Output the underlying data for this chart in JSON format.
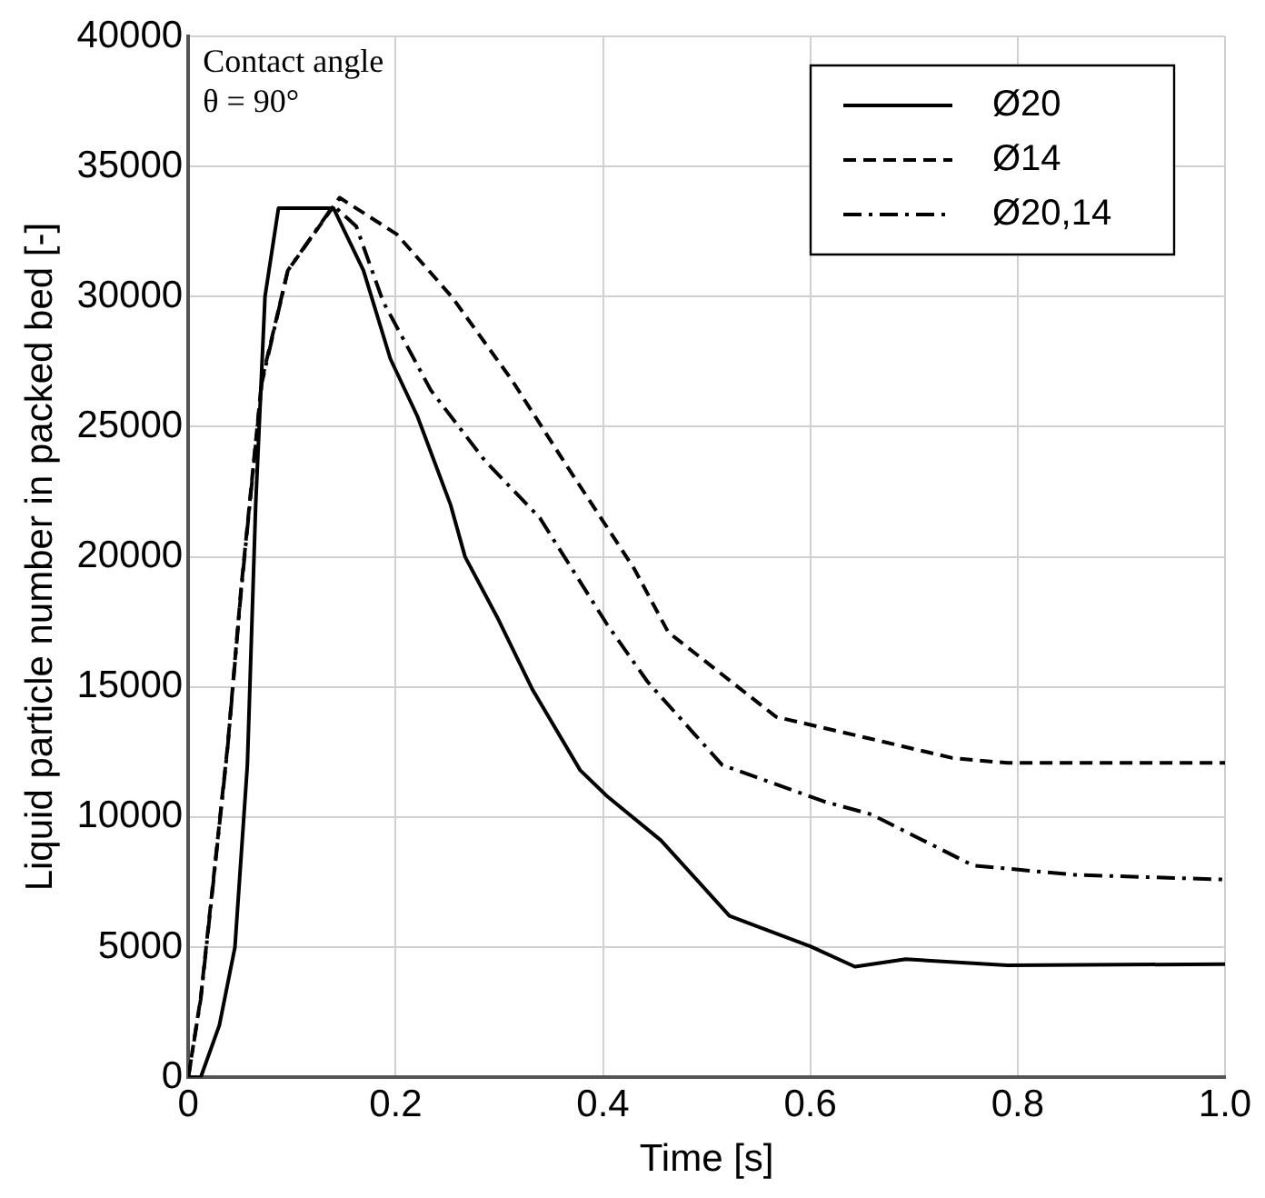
{
  "chart_data": {
    "type": "line",
    "xlabel": "Time [s]",
    "ylabel": "Liquid particle number in packed bed [-]",
    "annotations": [
      "Contact angle\nθ = 90°"
    ],
    "xlim": [
      0,
      1
    ],
    "xticks": [
      0,
      0.2,
      0.4,
      0.6,
      0.8,
      {
        "value": 1,
        "label": "1.0"
      }
    ],
    "ylim": [
      0,
      40000
    ],
    "yticks": [
      0,
      5000,
      10000,
      15000,
      20000,
      25000,
      30000,
      35000,
      40000
    ],
    "grid": true,
    "legend": "top right",
    "marker": "none",
    "series": [
      {
        "name": "Ø20",
        "color": "#000000",
        "line_style": "solid",
        "x": [
          0,
          0.012,
          0.03,
          0.045,
          0.057,
          0.065,
          0.074,
          0.087,
          0.14,
          0.169,
          0.195,
          0.221,
          0.253,
          0.267,
          0.299,
          0.332,
          0.378,
          0.404,
          0.456,
          0.522,
          0.6,
          0.643,
          0.692,
          0.79,
          1.0
        ],
        "values": [
          0,
          0,
          2000,
          5000,
          12000,
          22000,
          30000,
          33400,
          33400,
          31000,
          27600,
          25400,
          22000,
          20000,
          17600,
          14900,
          11800,
          10800,
          9100,
          6200,
          5030,
          4250,
          4540,
          4300,
          4350
        ]
      },
      {
        "name": "Ø14",
        "color": "#000000",
        "line_style": "dashed",
        "x": [
          0,
          0.012,
          0.025,
          0.038,
          0.051,
          0.071,
          0.096,
          0.146,
          0.201,
          0.254,
          0.312,
          0.365,
          0.43,
          0.463,
          0.567,
          0.659,
          0.737,
          0.79,
          1.0
        ],
        "values": [
          0,
          3060,
          7900,
          12750,
          18800,
          26800,
          31000,
          33800,
          32400,
          30000,
          26800,
          23500,
          19550,
          17100,
          13850,
          13000,
          12270,
          12080,
          12080
        ]
      },
      {
        "name": "Ø20,14",
        "color": "#000000",
        "line_style": "dashdot",
        "x": [
          0,
          0.012,
          0.025,
          0.038,
          0.051,
          0.071,
          0.096,
          0.14,
          0.162,
          0.188,
          0.234,
          0.286,
          0.339,
          0.404,
          0.443,
          0.515,
          0.613,
          0.659,
          0.757,
          0.855,
          1.0
        ],
        "values": [
          0,
          3000,
          7800,
          12700,
          18700,
          26700,
          31000,
          33500,
          32700,
          29800,
          26400,
          23700,
          21500,
          17400,
          15200,
          12000,
          10600,
          10100,
          8140,
          7780,
          7600
        ]
      }
    ]
  }
}
